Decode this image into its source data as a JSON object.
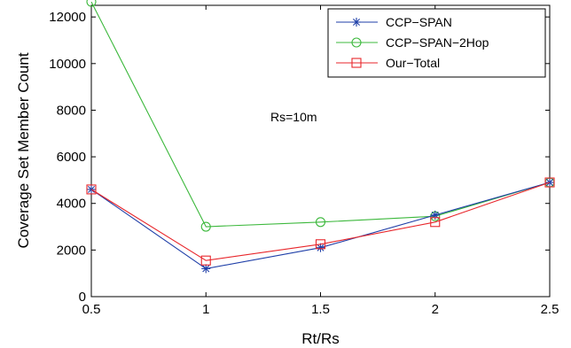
{
  "chart_data": {
    "type": "line",
    "title": "",
    "xlabel": "Rt/Rs",
    "ylabel": "Coverage Set Member Count",
    "x": [
      0.5,
      1,
      1.5,
      2,
      2.5
    ],
    "xlim": [
      0.5,
      2.5
    ],
    "ylim": [
      0,
      12500
    ],
    "xticks": [
      "0.5",
      "1",
      "1.5",
      "2",
      "2.5"
    ],
    "yticks": [
      "0",
      "2000",
      "4000",
      "6000",
      "8000",
      "10000",
      "12000"
    ],
    "grid": false,
    "legend_position": "top-right",
    "annotation": "Rs=10m",
    "series": [
      {
        "name": "CCP−SPAN",
        "color": "#1f3fa8",
        "marker": "asterisk",
        "values": [
          4600,
          1200,
          2100,
          3500,
          4900
        ]
      },
      {
        "name": "CCP−SPAN−2Hop",
        "color": "#3cb83c",
        "marker": "circle",
        "values": [
          12650,
          3000,
          3200,
          3450,
          4900
        ]
      },
      {
        "name": "Our−Total",
        "color": "#e8262b",
        "marker": "square",
        "values": [
          4600,
          1550,
          2250,
          3200,
          4900
        ]
      }
    ]
  }
}
